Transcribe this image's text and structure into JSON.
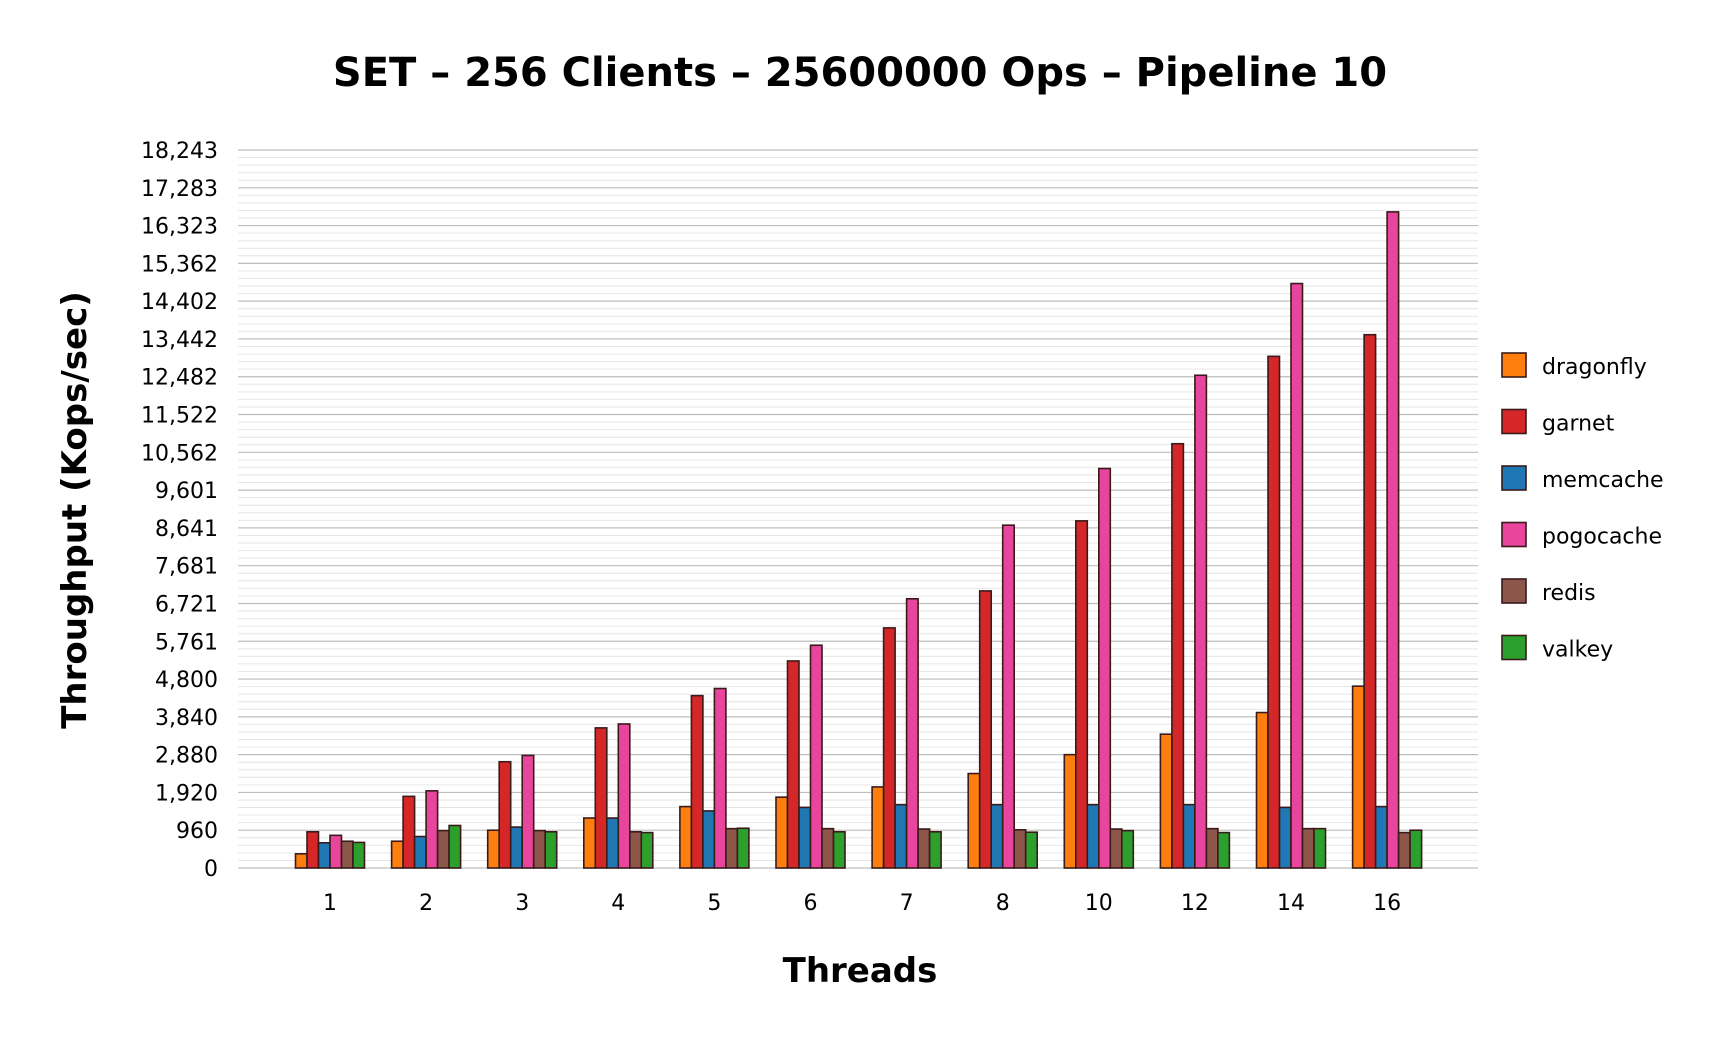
{
  "chart_data": {
    "type": "bar",
    "title": "SET – 256 Clients – 25600000 Ops – Pipeline 10",
    "xlabel": "Threads",
    "ylabel": "Throughput (Kops/sec)",
    "categories": [
      "1",
      "2",
      "3",
      "4",
      "5",
      "6",
      "7",
      "8",
      "10",
      "12",
      "14",
      "16"
    ],
    "yticks": [
      "0",
      "960",
      "1,920",
      "2,880",
      "3,840",
      "4,800",
      "5,761",
      "6,721",
      "7,681",
      "8,641",
      "9,601",
      "10,562",
      "11,522",
      "12,482",
      "13,442",
      "14,402",
      "15,362",
      "16,323",
      "17,283",
      "18,243"
    ],
    "ylim": [
      0,
      18243
    ],
    "grid": true,
    "legend_position": "right",
    "series": [
      {
        "name": "dragonfly",
        "color": "#ff7f0e",
        "values": [
          360,
          680,
          960,
          1270,
          1560,
          1800,
          2060,
          2400,
          2880,
          3400,
          3950,
          4620
        ]
      },
      {
        "name": "garnet",
        "color": "#d62728",
        "values": [
          920,
          1820,
          2700,
          3560,
          4380,
          5260,
          6100,
          7040,
          8820,
          10780,
          13000,
          13550
        ]
      },
      {
        "name": "memcache",
        "color": "#1f77b4",
        "values": [
          640,
          800,
          1040,
          1270,
          1450,
          1540,
          1610,
          1610,
          1610,
          1610,
          1540,
          1560
        ]
      },
      {
        "name": "pogocache",
        "color": "#e7469c",
        "values": [
          830,
          1960,
          2860,
          3660,
          4560,
          5660,
          6840,
          8710,
          10150,
          12520,
          14850,
          16670
        ]
      },
      {
        "name": "redis",
        "color": "#8c564b",
        "values": [
          680,
          950,
          950,
          920,
          1000,
          1000,
          990,
          970,
          990,
          1000,
          1000,
          900
        ]
      },
      {
        "name": "valkey",
        "color": "#2ca02c",
        "values": [
          650,
          1080,
          920,
          900,
          1010,
          920,
          920,
          910,
          950,
          900,
          1000,
          960
        ]
      }
    ]
  }
}
